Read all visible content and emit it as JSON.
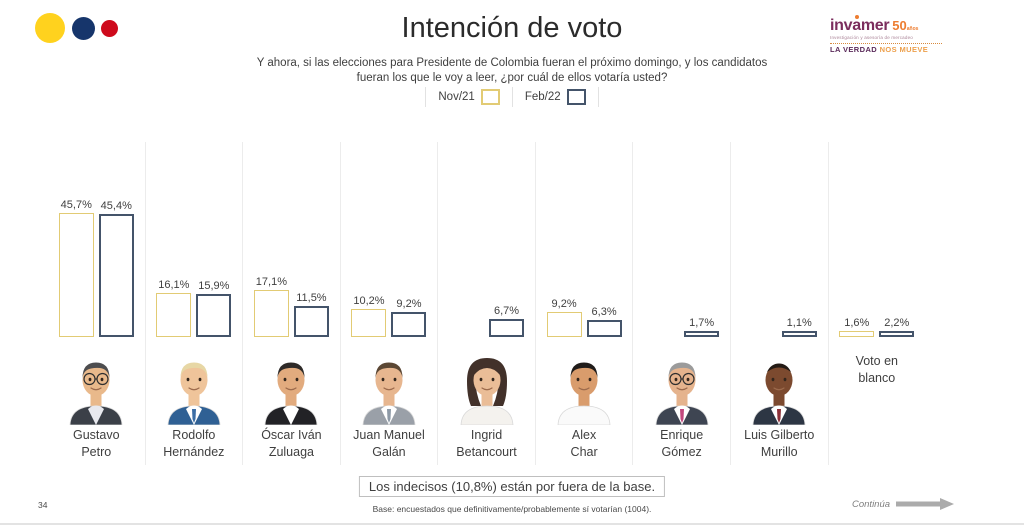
{
  "header": {
    "title": "Intención de voto",
    "subtitle_line1": "Y ahora, si las elecciones para Presidente de Colombia fueran el próximo domingo, y los candidatos",
    "subtitle_line2": "fueran los que le voy a leer, ¿por cuál de ellos votaría usted?"
  },
  "brand": {
    "dot_colors": [
      "#FFD21E",
      "#16356B",
      "#CE0A1C"
    ],
    "logo_word_start": "inv",
    "logo_word_a": "a",
    "logo_word_end": "mer",
    "logo_50": "50",
    "logo_50_suffix": "años",
    "logo_subtext": "Investigación y asesoría de mercadeo",
    "slogan_left": "LA VERDAD",
    "slogan_right": "NOS MUEVE"
  },
  "legend": {
    "items": [
      {
        "label": "Nov/21",
        "border": "#E2CB74"
      },
      {
        "label": "Feb/22",
        "border": "#44546A"
      }
    ]
  },
  "chart_data": {
    "type": "bar",
    "title": "Intención de voto",
    "bar_style": "outlined-white-fill",
    "ylim": [
      0,
      50
    ],
    "grid": false,
    "legend_position": "top-center",
    "categories": [
      "Gustavo Petro",
      "Rodolfo Hernández",
      "Óscar Iván Zuluaga",
      "Juan Manuel Galán",
      "Ingrid Betancourt",
      "Alex Char",
      "Enrique Gómez",
      "Luis Gilberto Murillo",
      "Voto en blanco"
    ],
    "series": [
      {
        "name": "Nov/21",
        "color": "#E2CB74",
        "values": [
          45.7,
          16.1,
          17.1,
          10.2,
          null,
          9.2,
          null,
          null,
          1.6
        ]
      },
      {
        "name": "Feb/22",
        "color": "#44546A",
        "values": [
          45.4,
          15.9,
          11.5,
          9.2,
          6.7,
          6.3,
          1.7,
          1.1,
          2.2
        ]
      }
    ]
  },
  "columns": [
    {
      "name_lines": [
        "Gustavo",
        "Petro"
      ],
      "nov_label": "45,7%",
      "feb_label": "45,4%",
      "nov_value": 45.7,
      "feb_value": 45.4,
      "avatar": {
        "skin": "#e9b98b",
        "hair": "#4d4d4f",
        "suit": "#3b4048",
        "shirt": "#e8e9ee",
        "tie": null,
        "glasses": true,
        "female": false,
        "bald": false
      }
    },
    {
      "name_lines": [
        "Rodolfo",
        "Hernández"
      ],
      "nov_label": "16,1%",
      "feb_label": "15,9%",
      "nov_value": 16.1,
      "feb_value": 15.9,
      "avatar": {
        "skin": "#efc49a",
        "hair": "#e7d7a5",
        "suit": "#2f6094",
        "shirt": "#ffffff",
        "tie": "#3d6ea5",
        "glasses": false,
        "female": false,
        "bald": false
      }
    },
    {
      "name_lines": [
        "Óscar Iván",
        "Zuluaga"
      ],
      "nov_label": "17,1%",
      "feb_label": "11,5%",
      "nov_value": 17.1,
      "feb_value": 11.5,
      "avatar": {
        "skin": "#e2ab7e",
        "hair": "#2e2a28",
        "suit": "#222226",
        "shirt": "#ffffff",
        "tie": null,
        "glasses": false,
        "female": false,
        "bald": false
      }
    },
    {
      "name_lines": [
        "Juan Manuel",
        "Galán"
      ],
      "nov_label": "10,2%",
      "feb_label": "9,2%",
      "nov_value": 10.2,
      "feb_value": 9.2,
      "avatar": {
        "skin": "#e7b68f",
        "hair": "#5b4734",
        "suit": "#9aa0a8",
        "shirt": "#ffffff",
        "tie": "#8d99a6",
        "glasses": false,
        "female": false,
        "bald": false
      }
    },
    {
      "name_lines": [
        "Ingrid",
        "Betancourt"
      ],
      "nov_label": null,
      "feb_label": "6,7%",
      "nov_value": null,
      "feb_value": 6.7,
      "avatar": {
        "skin": "#eabd97",
        "hair": "#42312a",
        "suit": "#f4f2ee",
        "shirt": "#f4f2ee",
        "tie": null,
        "glasses": false,
        "female": true,
        "bald": false
      }
    },
    {
      "name_lines": [
        "Alex",
        "Char"
      ],
      "nov_label": "9,2%",
      "feb_label": "6,3%",
      "nov_value": 9.2,
      "feb_value": 6.3,
      "avatar": {
        "skin": "#d99c6c",
        "hair": "#201c1a",
        "suit": "#fafafa",
        "shirt": "#fafafa",
        "tie": null,
        "glasses": false,
        "female": false,
        "bald": false
      }
    },
    {
      "name_lines": [
        "Enrique",
        "Gómez"
      ],
      "nov_label": null,
      "feb_label": "1,7%",
      "nov_value": null,
      "feb_value": 1.7,
      "avatar": {
        "skin": "#e5b38d",
        "hair": "#9b9b9b",
        "suit": "#3e4552",
        "shirt": "#ffffff",
        "tie": "#c2477d",
        "glasses": true,
        "female": false,
        "bald": false
      }
    },
    {
      "name_lines": [
        "Luis Gilberto",
        "Murillo"
      ],
      "nov_label": null,
      "feb_label": "1,1%",
      "nov_value": null,
      "feb_value": 1.1,
      "avatar": {
        "skin": "#7c4a2f",
        "hair": "#241b15",
        "suit": "#2d3644",
        "shirt": "#ffffff",
        "tie": "#8c3038",
        "glasses": false,
        "female": false,
        "bald": true
      }
    },
    {
      "name_lines": [
        "Voto en",
        "blanco"
      ],
      "nov_label": "1,6%",
      "feb_label": "2,2%",
      "nov_value": 1.6,
      "feb_value": 2.2,
      "avatar": null
    }
  ],
  "footer": {
    "note": "Los indecisos (10,8%) están por fuera de la base.",
    "base": "Base: encuestados que definitivamente/probablemente sí votarían (1004).",
    "page_number": "34",
    "continua": "Continúa"
  }
}
